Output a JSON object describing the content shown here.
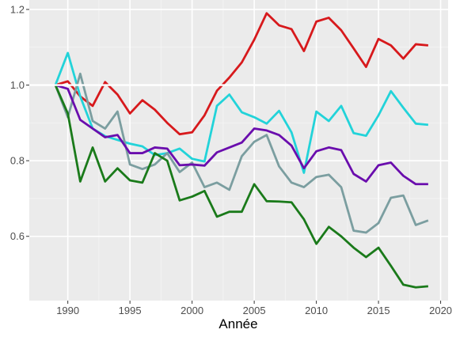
{
  "chart_data": {
    "type": "line",
    "title": "",
    "xlabel": "Année",
    "ylabel": "",
    "xlim": [
      1986.9,
      2020.6
    ],
    "ylim": [
      0.43,
      1.225
    ],
    "x_ticks": [
      1990,
      1995,
      2000,
      2005,
      2010,
      2015,
      2020
    ],
    "y_ticks": [
      0.6,
      0.8,
      1.0,
      1.2
    ],
    "y_tick_labels": [
      "0.6",
      "0.8",
      "1.0",
      "1.2"
    ],
    "grid": true,
    "reference_line": 1.0,
    "colors": {
      "panel": "#ebebeb",
      "grid_major": "#ffffff",
      "grid_minor": "#f5f5f5",
      "axis_text": "#4d4d4d"
    },
    "x": [
      1989,
      1990,
      1991,
      1992,
      1993,
      1994,
      1995,
      1996,
      1997,
      1998,
      1999,
      2000,
      2001,
      2002,
      2003,
      2004,
      2005,
      2006,
      2007,
      2008,
      2009,
      2010,
      2011,
      2012,
      2013,
      2014,
      2015,
      2016,
      2017,
      2018,
      2019
    ],
    "series": [
      {
        "color": "#d7191c",
        "values": [
          1.0,
          1.01,
          0.97,
          0.945,
          1.008,
          0.975,
          0.925,
          0.96,
          0.935,
          0.9,
          0.87,
          0.875,
          0.92,
          0.985,
          1.02,
          1.06,
          1.12,
          1.19,
          1.158,
          1.148,
          1.09,
          1.168,
          1.178,
          1.145,
          1.097,
          1.048,
          1.122,
          1.105,
          1.07,
          1.108,
          1.105
        ]
      },
      {
        "color": "#22d3d9",
        "values": [
          1.0,
          1.085,
          0.97,
          0.885,
          0.865,
          0.855,
          0.845,
          0.838,
          0.815,
          0.82,
          0.832,
          0.805,
          0.798,
          0.945,
          0.975,
          0.928,
          0.915,
          0.898,
          0.932,
          0.875,
          0.768,
          0.93,
          0.905,
          0.945,
          0.873,
          0.866,
          0.92,
          0.984,
          0.94,
          0.898,
          0.895
        ]
      },
      {
        "color": "#7b9ea0",
        "values": [
          1.0,
          0.915,
          1.03,
          0.905,
          0.885,
          0.93,
          0.79,
          0.778,
          0.79,
          0.82,
          0.77,
          0.795,
          0.73,
          0.742,
          0.723,
          0.812,
          0.85,
          0.868,
          0.785,
          0.742,
          0.73,
          0.757,
          0.763,
          0.73,
          0.615,
          0.61,
          0.635,
          0.702,
          0.708,
          0.63,
          0.642
        ]
      },
      {
        "color": "#6a0dad",
        "values": [
          1.0,
          0.99,
          0.908,
          0.885,
          0.862,
          0.868,
          0.82,
          0.82,
          0.835,
          0.832,
          0.788,
          0.79,
          0.787,
          0.822,
          0.835,
          0.848,
          0.885,
          0.88,
          0.868,
          0.84,
          0.78,
          0.825,
          0.835,
          0.828,
          0.765,
          0.745,
          0.788,
          0.795,
          0.76,
          0.738,
          0.738
        ]
      },
      {
        "color": "#1a7a1a",
        "values": [
          1.0,
          0.925,
          0.745,
          0.835,
          0.745,
          0.78,
          0.748,
          0.742,
          0.82,
          0.8,
          0.695,
          0.705,
          0.72,
          0.652,
          0.665,
          0.665,
          0.738,
          0.693,
          0.692,
          0.69,
          0.645,
          0.58,
          0.625,
          0.6,
          0.57,
          0.545,
          0.57,
          0.522,
          0.472,
          0.465,
          0.468
        ]
      }
    ]
  }
}
